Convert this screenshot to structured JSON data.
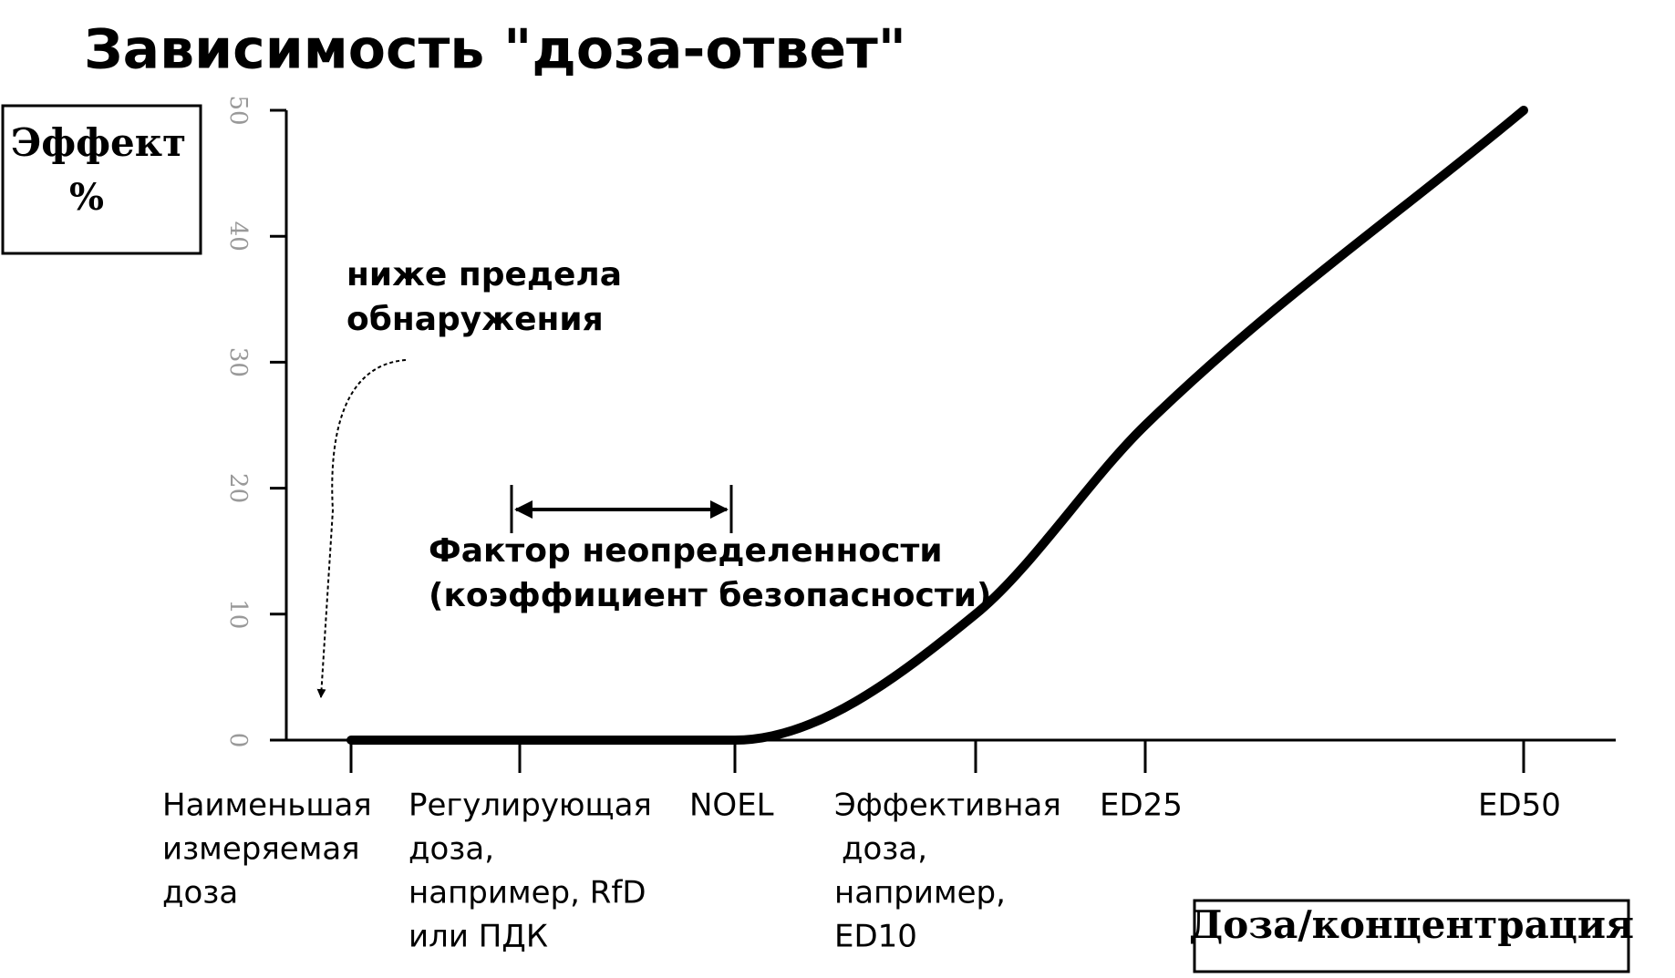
{
  "chart_data": {
    "type": "line",
    "title": "Зависимость \"доза-ответ\"",
    "y_label": [
      "Эффект",
      "%"
    ],
    "x_label": "Доза/концентрация",
    "annotations": [
      {
        "lines": [
          "ниже предела",
          "обнаружения"
        ]
      },
      {
        "lines": [
          "Фактор неопределенности",
          "(коэффициент безопасности)"
        ]
      }
    ],
    "categories": [
      [
        "Наименьшая",
        "измеряемая",
        "доза"
      ],
      [
        "Регулирующая",
        "доза,",
        "например, RfD",
        "или ПДК"
      ],
      [
        "NOEL"
      ],
      [
        "Эффективная",
        "доза,",
        "например,",
        "ED10"
      ],
      [
        "ED25"
      ],
      [
        "ED50"
      ]
    ],
    "values": [
      0,
      0,
      0,
      10,
      25,
      50
    ],
    "color": "#000000",
    "ylim": [
      0,
      50
    ],
    "yticks": [
      0,
      10,
      20,
      30,
      40,
      50
    ]
  }
}
